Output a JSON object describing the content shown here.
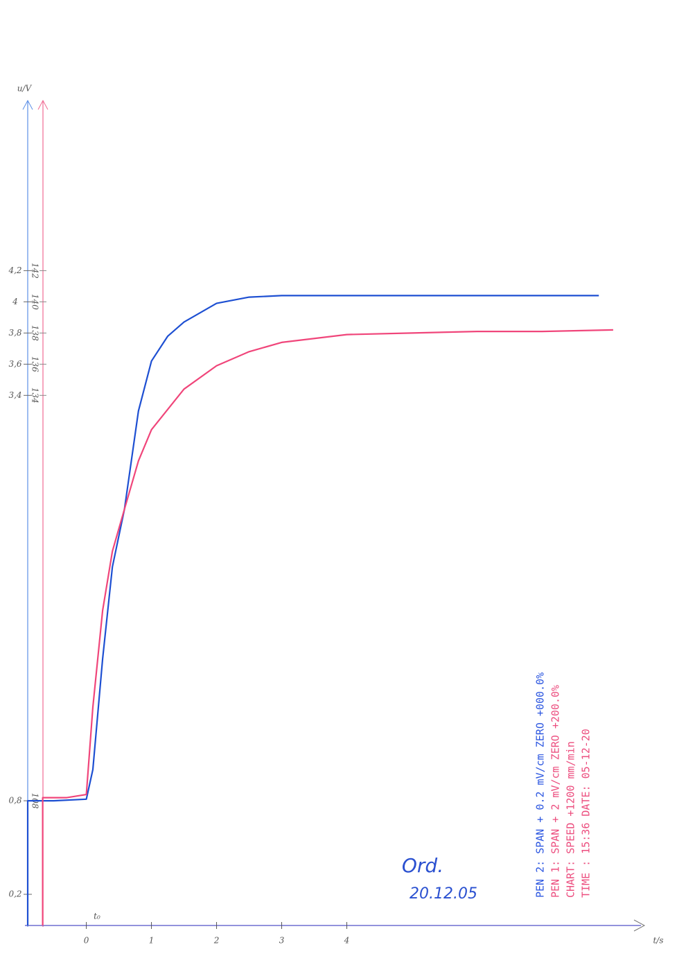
{
  "chart_data": {
    "type": "line",
    "y_label": "u/V",
    "x_label": "t/s",
    "xlim": [
      -0.9,
      8.4
    ],
    "xticks": [
      0,
      1,
      2,
      3,
      4
    ],
    "ylim": [
      0,
      5.3
    ],
    "yticks": [
      {
        "value": 4.2,
        "label": "4,2"
      },
      4,
      {
        "value": 3.8,
        "label": "3,8"
      },
      {
        "value": 3.6,
        "label": "3,6"
      },
      {
        "value": 3.4,
        "label": "3,4"
      },
      {
        "value": 0.8,
        "label": "0,8"
      },
      {
        "value": 0.2,
        "label": "0,2"
      }
    ],
    "y2lim": [
      100,
      153
    ],
    "y2ticks": [
      142,
      140,
      138,
      136,
      134,
      108
    ],
    "series": [
      {
        "color": "#1d4fd2",
        "x": [
          -0.9,
          -0.9,
          -0.5,
          0,
          0.1,
          0.25,
          0.4,
          0.585,
          0.8,
          1,
          1.25,
          1.5,
          2,
          2.5,
          3,
          4,
          5,
          6,
          7,
          7.87
        ],
        "values": [
          0,
          0.8,
          0.8,
          0.81,
          1.0,
          1.71,
          2.3,
          2.67,
          3.3,
          3.62,
          3.78,
          3.87,
          3.99,
          4.03,
          4.04,
          4.04,
          4.04,
          4.04,
          4.04,
          4.04
        ]
      },
      {
        "color": "#f0457a",
        "axis": "y",
        "x": [
          -0.67,
          -0.67,
          -0.3,
          0,
          0.1,
          0.25,
          0.4,
          0.585,
          0.8,
          1,
          1.5,
          2,
          2.5,
          3,
          4,
          5,
          6,
          7,
          8.09
        ],
        "values": [
          0,
          0.82,
          0.82,
          0.84,
          1.4,
          2.02,
          2.4,
          2.67,
          2.98,
          3.18,
          3.44,
          3.59,
          3.68,
          3.74,
          3.79,
          3.8,
          3.81,
          3.81,
          3.82
        ]
      }
    ],
    "annotation": "t₀",
    "printout": {
      "lines": [
        "PEN 2: SPAN + 0.2 mV/cm  ZERO +000.0%",
        "PEN 1: SPAN +   2 mV/cm  ZERO +200.0%",
        "CHART: SPEED +1200 mm/min",
        "TIME : 15:36   DATE: 05-12-20"
      ],
      "colors": [
        "#2a55e0",
        "#ec4d7e",
        "#ec4d7e",
        "#ec4d7e"
      ]
    },
    "signature": "Ord.",
    "date": "20.12.05"
  }
}
